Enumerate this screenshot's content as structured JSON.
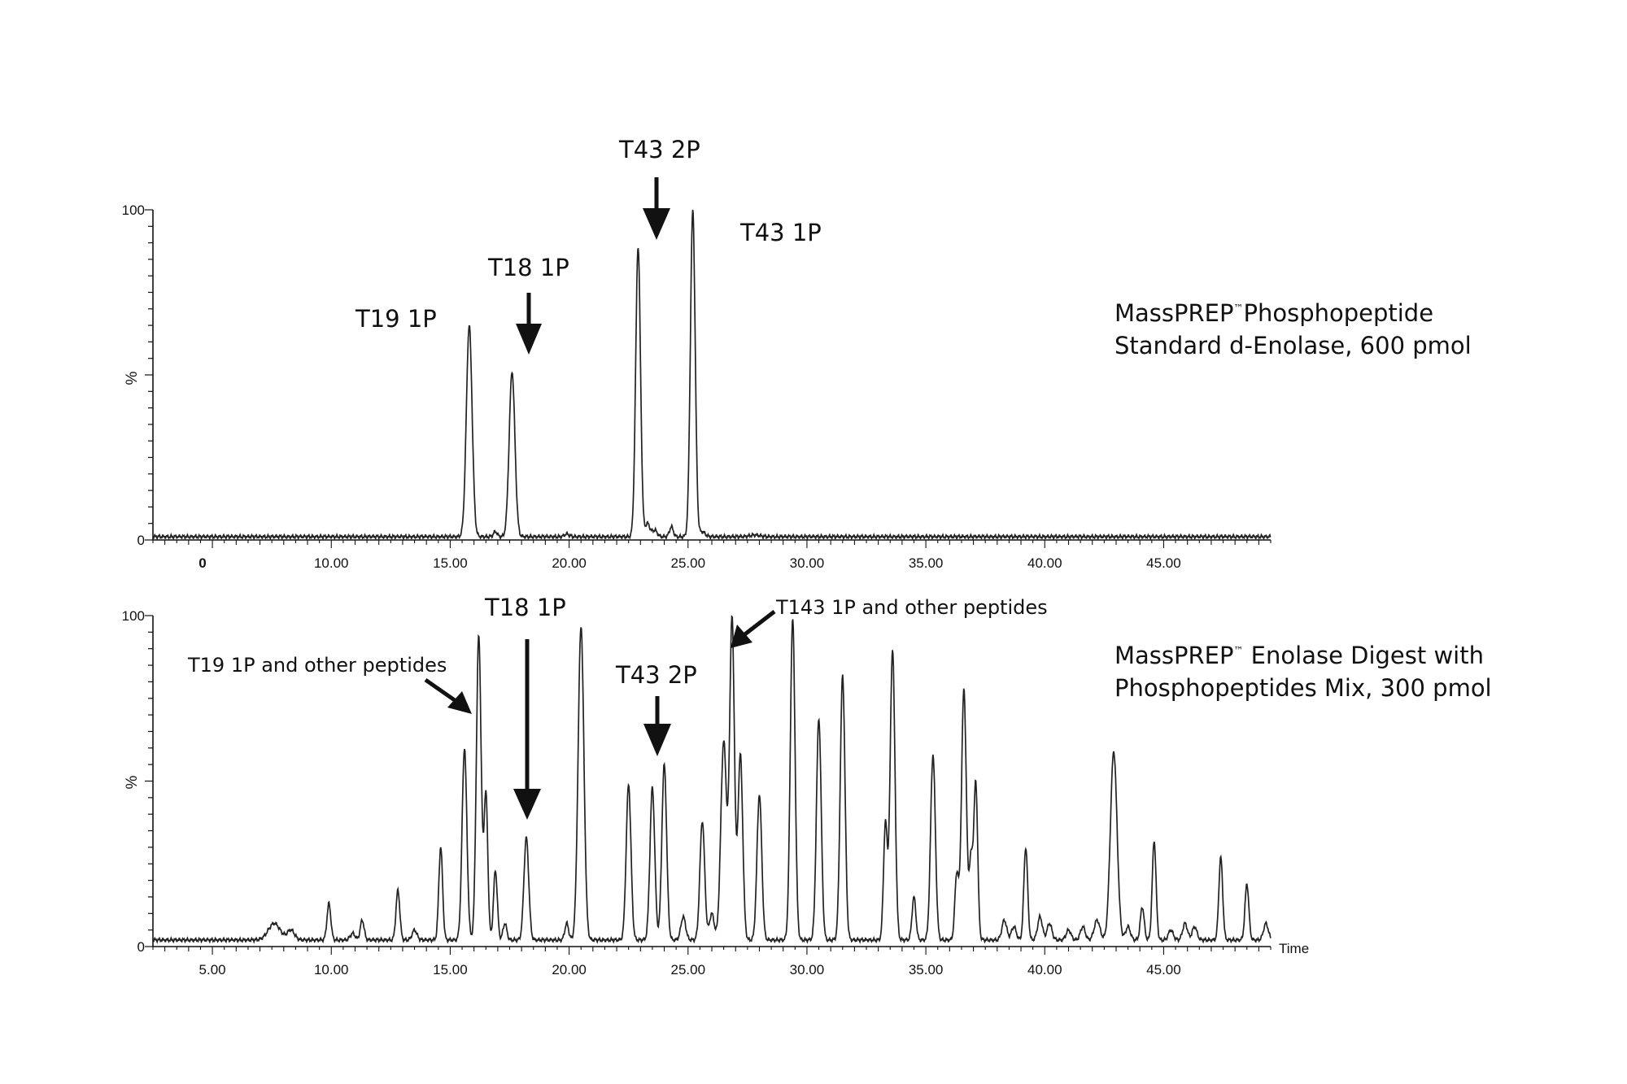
{
  "chart_data": [
    {
      "type": "line",
      "description_lines": [
        "MassPREP",
        "™",
        "Phosphopeptide",
        "Standard d-Enolase, 600 pmol"
      ],
      "x_axis": {
        "range": [
          2.5,
          49.5
        ],
        "tick_values": [
          10,
          15,
          20,
          25,
          30,
          35,
          40,
          45
        ],
        "tick_labels": [
          "10.00",
          "15.00",
          "20.00",
          "25.00",
          "30.00",
          "35.00",
          "40.00",
          "45.00"
        ],
        "extra_label": "0"
      },
      "y_axis": {
        "range": [
          0,
          100
        ],
        "tick_labels": [
          "0",
          "%",
          "100"
        ]
      },
      "baseline": 1.0,
      "peaks": [
        {
          "x": 15.8,
          "height": 64.0,
          "width": 0.12
        },
        {
          "x": 16.9,
          "height": 1.5,
          "width": 0.08
        },
        {
          "x": 17.6,
          "height": 50.0,
          "width": 0.12
        },
        {
          "x": 19.9,
          "height": 0.8,
          "width": 0.1
        },
        {
          "x": 22.9,
          "height": 88.0,
          "width": 0.1
        },
        {
          "x": 23.3,
          "height": 4.0,
          "width": 0.1
        },
        {
          "x": 23.6,
          "height": 2.0,
          "width": 0.1
        },
        {
          "x": 24.3,
          "height": 3.0,
          "width": 0.08
        },
        {
          "x": 25.2,
          "height": 99.0,
          "width": 0.1
        },
        {
          "x": 25.6,
          "height": 1.5,
          "width": 0.12
        },
        {
          "x": 27.8,
          "height": 0.5,
          "width": 0.2
        }
      ],
      "annotations": [
        {
          "text": "T19 1P",
          "target_x": 15.8
        },
        {
          "text": "T18 1P",
          "target_x": 17.6
        },
        {
          "text": "T43  2P",
          "target_x": 22.9
        },
        {
          "text": "T43 1P",
          "target_x": 25.2
        }
      ]
    },
    {
      "type": "line",
      "description_lines": [
        "MassPREP",
        "™",
        " Enolase Digest with",
        "Phosphopeptides Mix, 300 pmol"
      ],
      "x_axis": {
        "range": [
          2.5,
          49.5
        ],
        "tick_values": [
          5,
          10,
          15,
          20,
          25,
          30,
          35,
          40,
          45
        ],
        "tick_labels": [
          "5.00",
          "10.00",
          "15.00",
          "20.00",
          "25.00",
          "30.00",
          "35.00",
          "40.00",
          "45.00"
        ],
        "title": "Time"
      },
      "y_axis": {
        "range": [
          0,
          100
        ],
        "tick_labels": [
          "0",
          "%",
          "100"
        ]
      },
      "baseline": 2.0,
      "peaks": [
        {
          "x": 7.6,
          "height": 5.0,
          "width": 0.25
        },
        {
          "x": 8.3,
          "height": 3.0,
          "width": 0.15
        },
        {
          "x": 9.9,
          "height": 11.0,
          "width": 0.08
        },
        {
          "x": 10.9,
          "height": 2.0,
          "width": 0.1
        },
        {
          "x": 11.3,
          "height": 6.0,
          "width": 0.08
        },
        {
          "x": 12.8,
          "height": 15.0,
          "width": 0.08
        },
        {
          "x": 13.5,
          "height": 3.0,
          "width": 0.1
        },
        {
          "x": 14.6,
          "height": 28.0,
          "width": 0.08
        },
        {
          "x": 15.6,
          "height": 58.0,
          "width": 0.1
        },
        {
          "x": 16.2,
          "height": 92.0,
          "width": 0.1
        },
        {
          "x": 16.5,
          "height": 44.0,
          "width": 0.08
        },
        {
          "x": 16.9,
          "height": 21.0,
          "width": 0.08
        },
        {
          "x": 17.3,
          "height": 5.0,
          "width": 0.08
        },
        {
          "x": 18.2,
          "height": 31.0,
          "width": 0.1
        },
        {
          "x": 19.9,
          "height": 5.0,
          "width": 0.08
        },
        {
          "x": 20.5,
          "height": 95.0,
          "width": 0.12
        },
        {
          "x": 22.5,
          "height": 47.0,
          "width": 0.1
        },
        {
          "x": 23.5,
          "height": 46.0,
          "width": 0.1
        },
        {
          "x": 24.0,
          "height": 53.0,
          "width": 0.1
        },
        {
          "x": 24.8,
          "height": 7.0,
          "width": 0.1
        },
        {
          "x": 25.6,
          "height": 36.0,
          "width": 0.1
        },
        {
          "x": 26.0,
          "height": 8.0,
          "width": 0.1
        },
        {
          "x": 26.5,
          "height": 60.0,
          "width": 0.12
        },
        {
          "x": 26.85,
          "height": 97.0,
          "width": 0.1
        },
        {
          "x": 27.2,
          "height": 56.0,
          "width": 0.1
        },
        {
          "x": 28.0,
          "height": 44.0,
          "width": 0.1
        },
        {
          "x": 29.4,
          "height": 97.0,
          "width": 0.1
        },
        {
          "x": 30.5,
          "height": 67.0,
          "width": 0.1
        },
        {
          "x": 31.5,
          "height": 80.0,
          "width": 0.1
        },
        {
          "x": 33.3,
          "height": 35.0,
          "width": 0.08
        },
        {
          "x": 33.6,
          "height": 88.0,
          "width": 0.1
        },
        {
          "x": 34.5,
          "height": 13.0,
          "width": 0.08
        },
        {
          "x": 35.3,
          "height": 56.0,
          "width": 0.1
        },
        {
          "x": 36.3,
          "height": 20.0,
          "width": 0.08
        },
        {
          "x": 36.6,
          "height": 76.0,
          "width": 0.1
        },
        {
          "x": 36.9,
          "height": 24.0,
          "width": 0.08
        },
        {
          "x": 37.1,
          "height": 47.0,
          "width": 0.08
        },
        {
          "x": 38.3,
          "height": 6.0,
          "width": 0.1
        },
        {
          "x": 38.7,
          "height": 4.0,
          "width": 0.1
        },
        {
          "x": 39.2,
          "height": 28.0,
          "width": 0.08
        },
        {
          "x": 39.8,
          "height": 7.0,
          "width": 0.1
        },
        {
          "x": 40.2,
          "height": 5.0,
          "width": 0.1
        },
        {
          "x": 41.0,
          "height": 3.0,
          "width": 0.1
        },
        {
          "x": 41.6,
          "height": 4.0,
          "width": 0.1
        },
        {
          "x": 42.2,
          "height": 6.0,
          "width": 0.12
        },
        {
          "x": 42.9,
          "height": 57.0,
          "width": 0.14
        },
        {
          "x": 43.5,
          "height": 4.0,
          "width": 0.1
        },
        {
          "x": 44.1,
          "height": 10.0,
          "width": 0.08
        },
        {
          "x": 44.6,
          "height": 30.0,
          "width": 0.08
        },
        {
          "x": 45.3,
          "height": 3.0,
          "width": 0.1
        },
        {
          "x": 45.9,
          "height": 5.0,
          "width": 0.1
        },
        {
          "x": 46.3,
          "height": 4.0,
          "width": 0.1
        },
        {
          "x": 47.4,
          "height": 25.0,
          "width": 0.08
        },
        {
          "x": 48.5,
          "height": 17.0,
          "width": 0.08
        },
        {
          "x": 49.3,
          "height": 5.0,
          "width": 0.1
        }
      ],
      "annotations": [
        {
          "text": "T19 1P and other peptides",
          "target_x": 16.1
        },
        {
          "text": "T18 1P",
          "target_x": 18.2
        },
        {
          "text": "T43  2P",
          "target_x": 24.0
        },
        {
          "text": "T143 1P and other peptides",
          "target_x": 26.8
        }
      ]
    }
  ]
}
